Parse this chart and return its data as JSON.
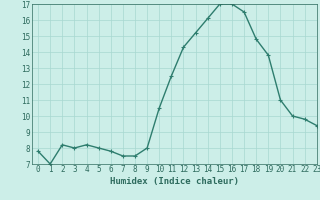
{
  "x": [
    0,
    1,
    2,
    3,
    4,
    5,
    6,
    7,
    8,
    9,
    10,
    11,
    12,
    13,
    14,
    15,
    16,
    17,
    18,
    19,
    20,
    21,
    22,
    23
  ],
  "y": [
    7.8,
    7.0,
    8.2,
    8.0,
    8.2,
    8.0,
    7.8,
    7.5,
    7.5,
    8.0,
    10.5,
    12.5,
    14.3,
    15.2,
    16.1,
    17.0,
    17.0,
    16.5,
    14.8,
    13.8,
    11.0,
    10.0,
    9.8,
    9.4
  ],
  "line_color": "#2e7d6e",
  "bg_color": "#cceee8",
  "grid_color": "#a8d8d0",
  "xlabel": "Humidex (Indice chaleur)",
  "ylim": [
    7,
    17
  ],
  "xlim": [
    -0.5,
    23
  ],
  "yticks": [
    7,
    8,
    9,
    10,
    11,
    12,
    13,
    14,
    15,
    16,
    17
  ],
  "xticks": [
    0,
    1,
    2,
    3,
    4,
    5,
    6,
    7,
    8,
    9,
    10,
    11,
    12,
    13,
    14,
    15,
    16,
    17,
    18,
    19,
    20,
    21,
    22,
    23
  ],
  "tick_color": "#2e6b5e",
  "label_fontsize": 6.5,
  "tick_fontsize": 5.5,
  "marker": "+",
  "marker_size": 3.5,
  "linewidth": 1.0
}
